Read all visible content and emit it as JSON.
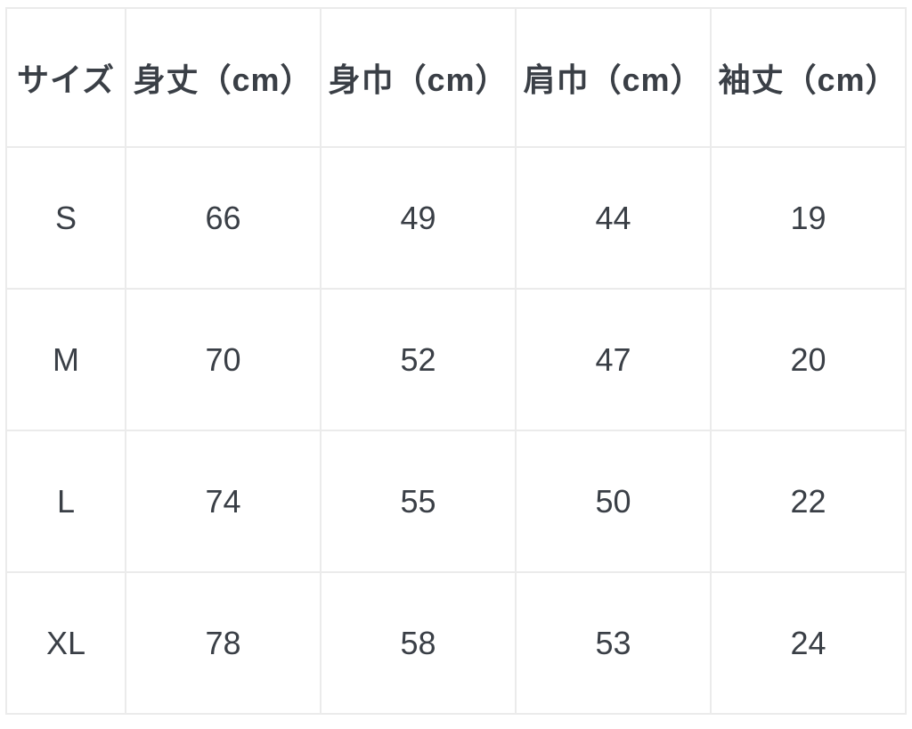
{
  "size_chart": {
    "columns": [
      "サイズ",
      "身丈（cm）",
      "身巾（cm）",
      "肩巾（cm）",
      "袖丈（cm）"
    ],
    "rows": [
      {
        "size": "S",
        "body_length": "66",
        "body_width": "49",
        "shoulder_width": "44",
        "sleeve_length": "19"
      },
      {
        "size": "M",
        "body_length": "70",
        "body_width": "52",
        "shoulder_width": "47",
        "sleeve_length": "20"
      },
      {
        "size": "L",
        "body_length": "74",
        "body_width": "55",
        "shoulder_width": "50",
        "sleeve_length": "22"
      },
      {
        "size": "XL",
        "body_length": "78",
        "body_width": "58",
        "shoulder_width": "53",
        "sleeve_length": "24"
      }
    ]
  },
  "colors": {
    "table-border": "#ebebeb",
    "text": "#3a3f46",
    "background": "#ffffff"
  }
}
